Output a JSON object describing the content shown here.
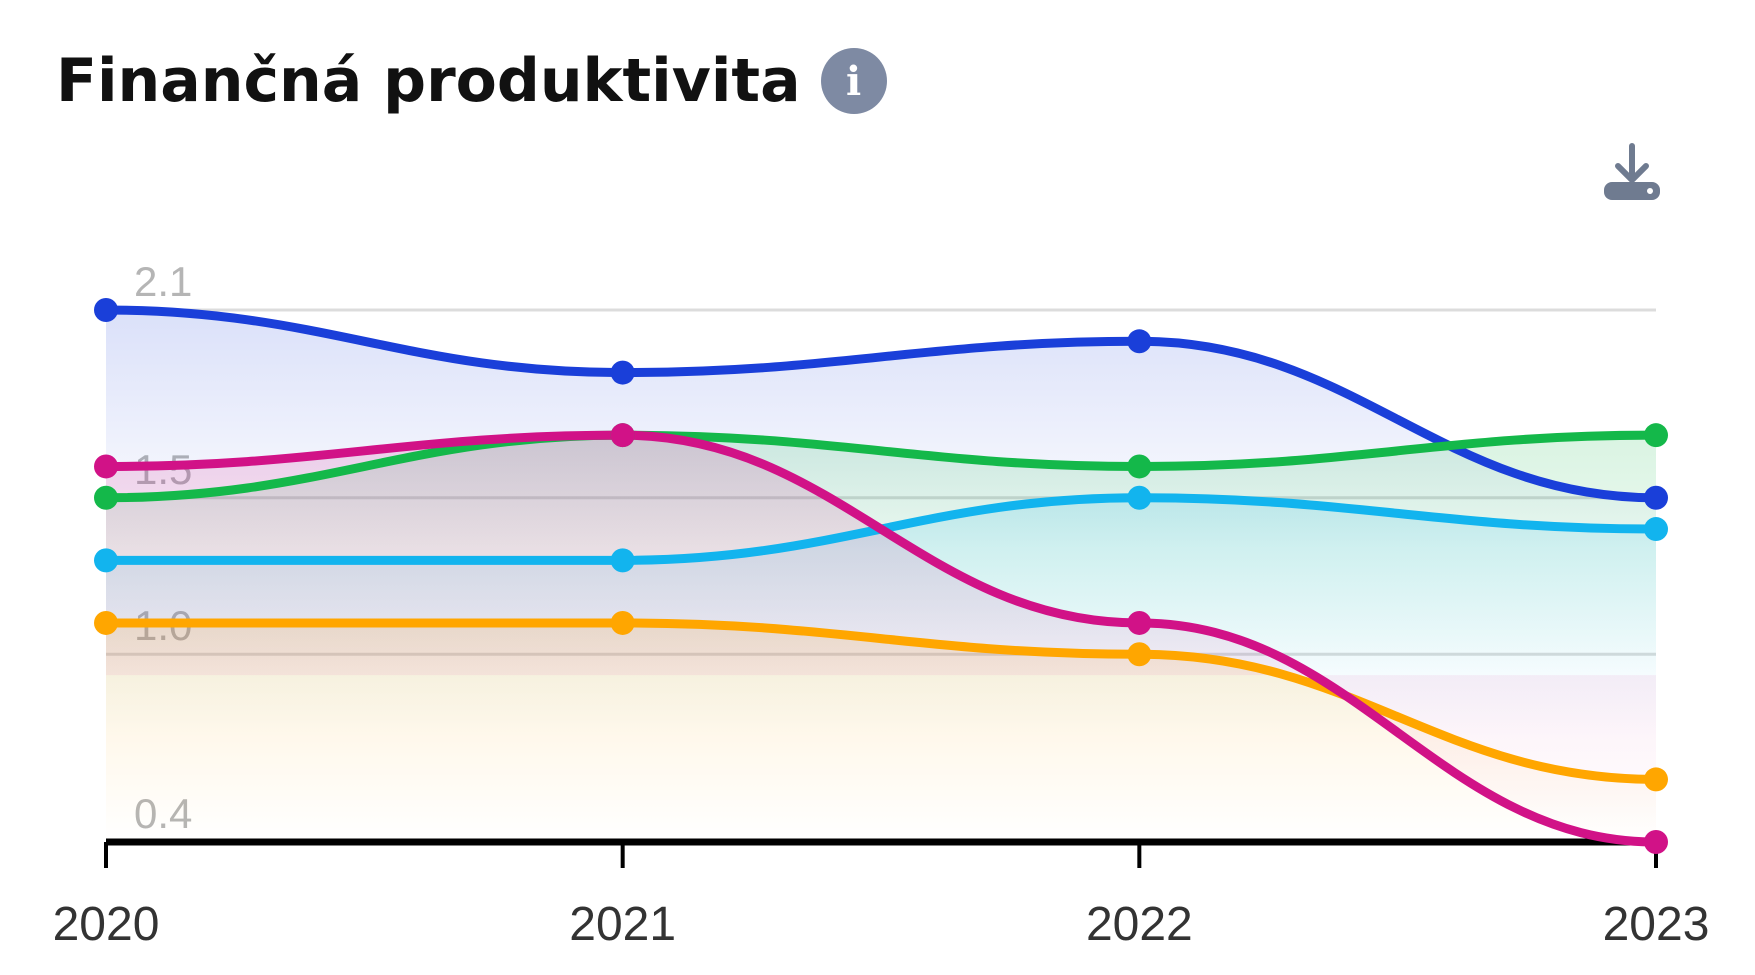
{
  "header": {
    "title": "Finančná produktivita",
    "info_icon": "info-icon"
  },
  "toolbar": {
    "download_icon": "download-icon"
  },
  "chart_data": {
    "type": "line",
    "title": "Finančná produktivita",
    "xlabel": "",
    "ylabel": "",
    "x": [
      "2020",
      "2021",
      "2022",
      "2023"
    ],
    "yticks": [
      "2.1",
      "1.5",
      "1.0",
      "0.4"
    ],
    "ylim": [
      0.4,
      2.1
    ],
    "grid": true,
    "series": [
      {
        "color": "#1a3fd9",
        "values": [
          2.1,
          1.9,
          2.0,
          1.5
        ]
      },
      {
        "color": "#14b84a",
        "values": [
          1.5,
          1.7,
          1.6,
          1.7
        ]
      },
      {
        "color": "#12b4ee",
        "values": [
          1.3,
          1.3,
          1.5,
          1.4
        ]
      },
      {
        "color": "#ffa600",
        "values": [
          1.1,
          1.1,
          1.0,
          0.6
        ]
      },
      {
        "color": "#d11287",
        "values": [
          1.6,
          1.7,
          1.1,
          0.4
        ]
      }
    ]
  }
}
